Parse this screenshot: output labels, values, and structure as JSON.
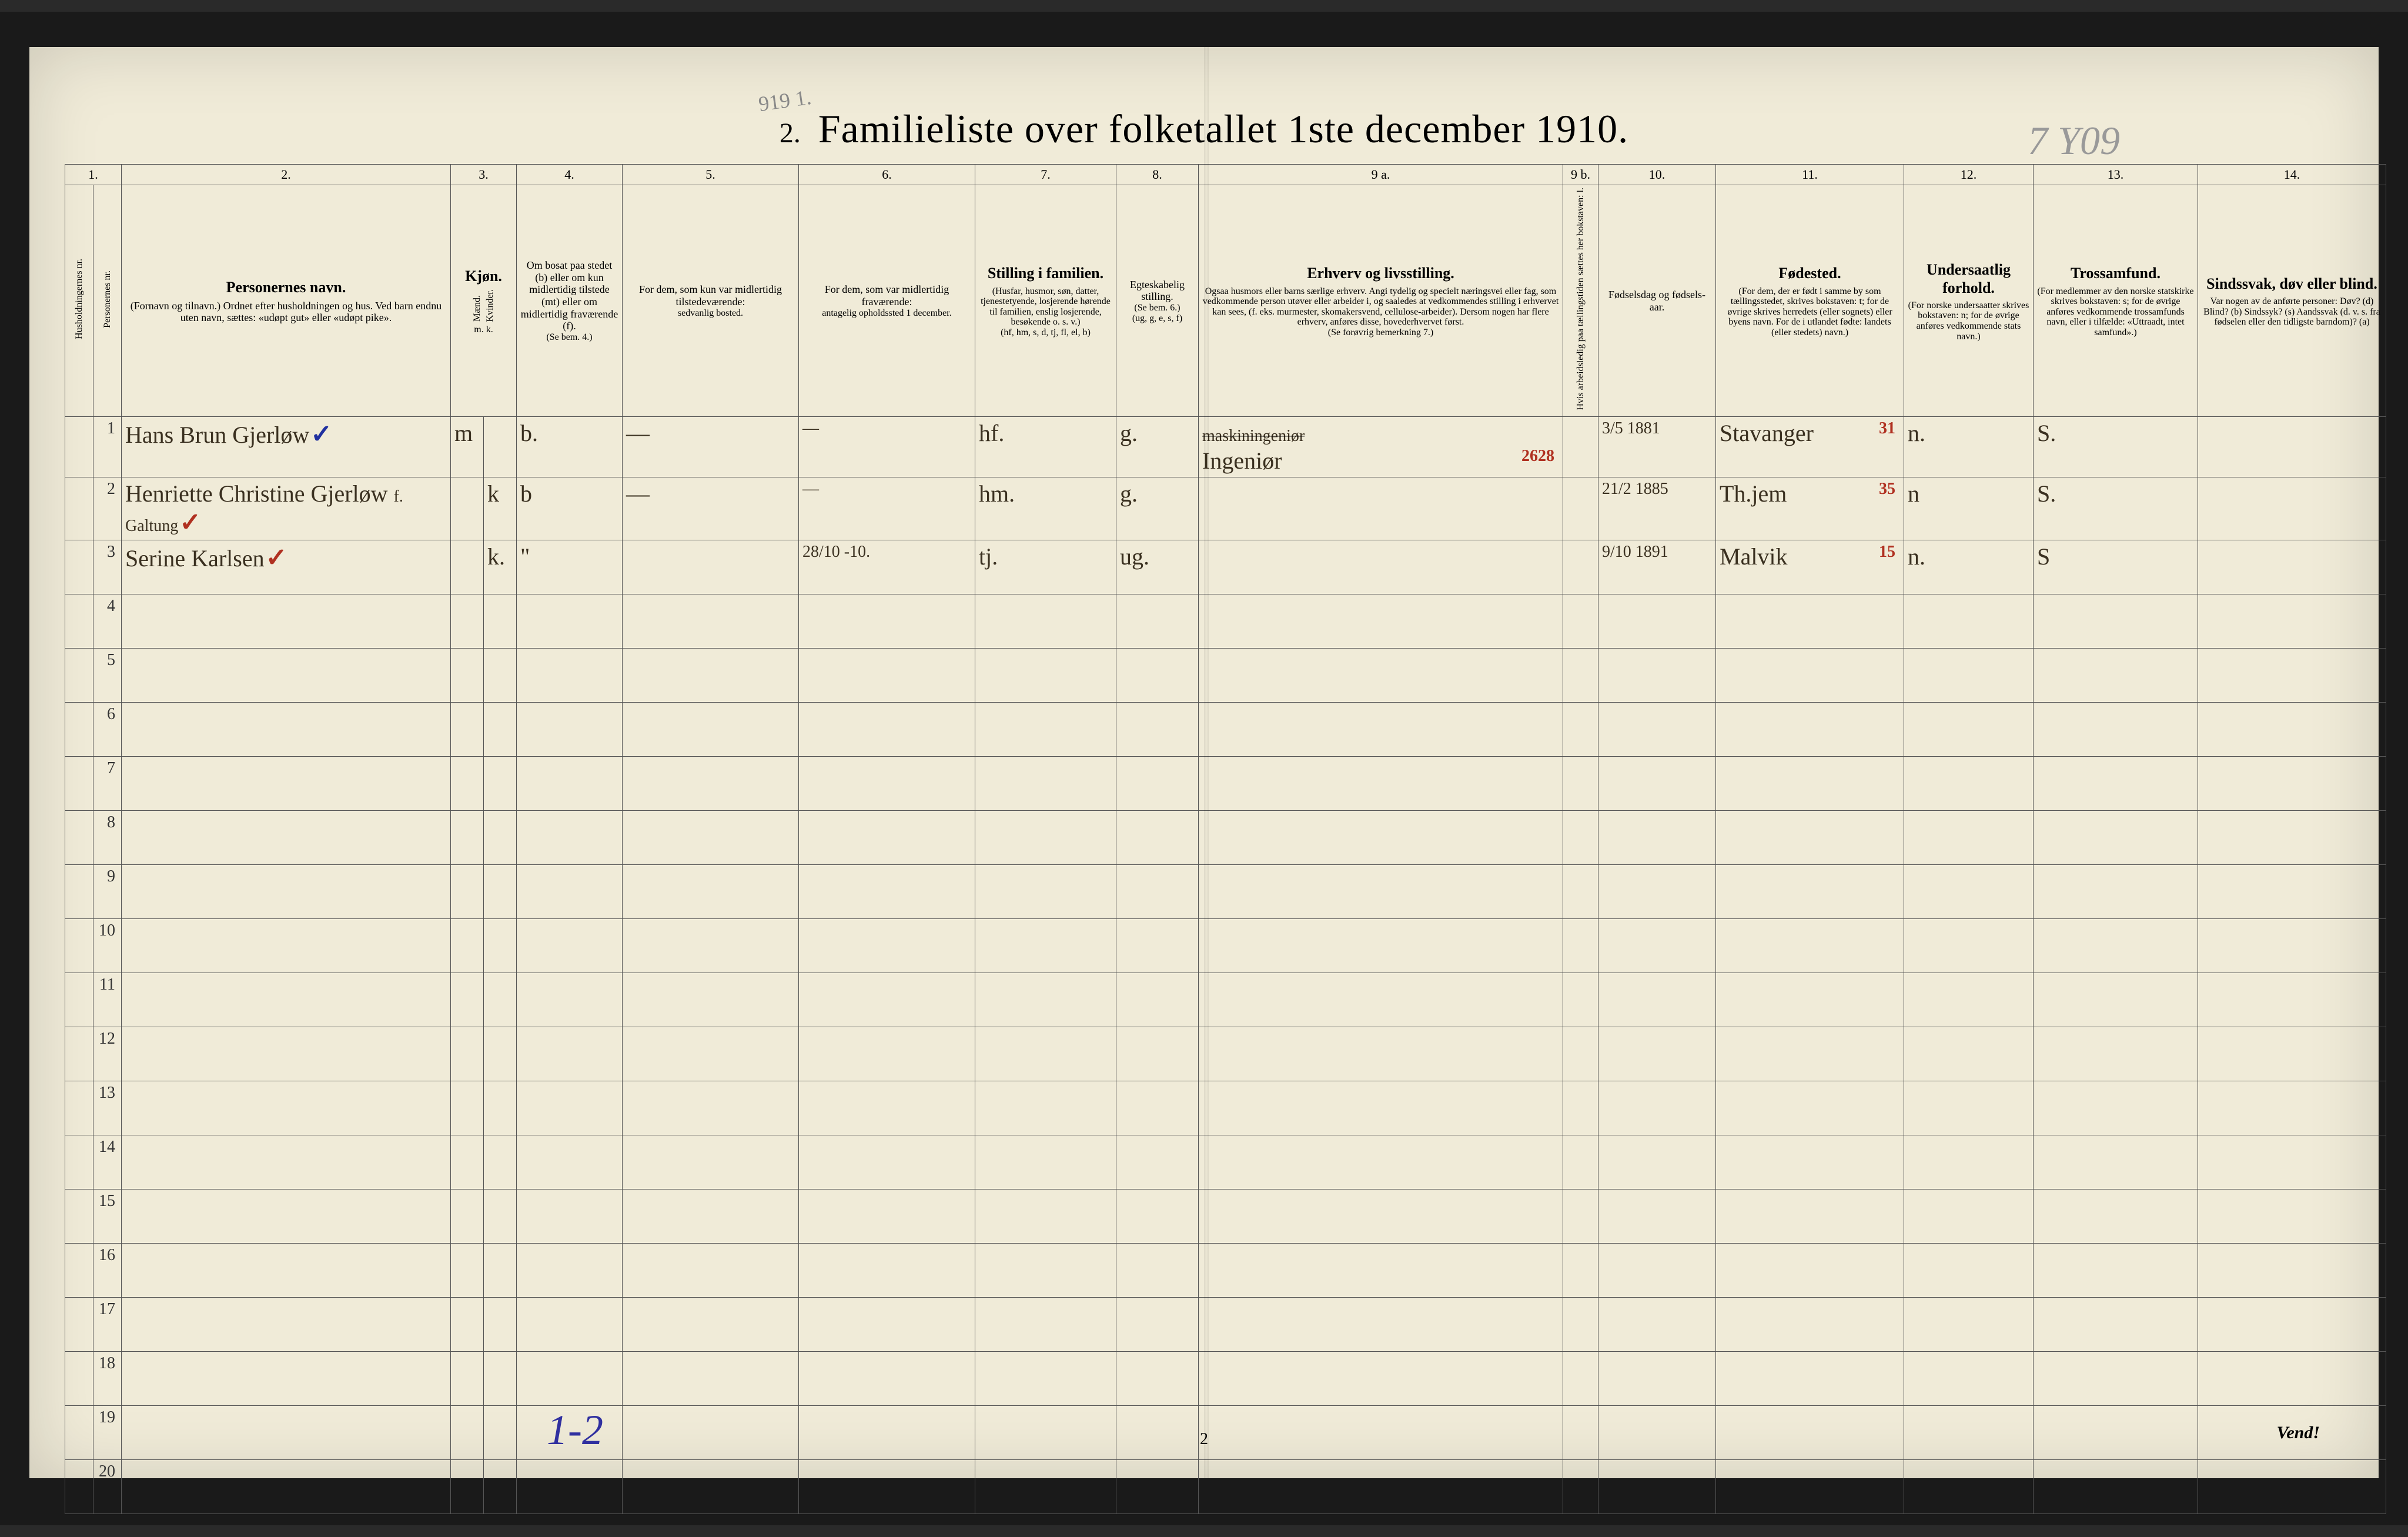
{
  "top_pencil": "919 1.",
  "header": {
    "number": "2.",
    "title": "Familieliste over folketallet 1ste december 1910.",
    "pencil_right": "7 Y09"
  },
  "column_numbers": [
    "1.",
    "",
    "2.",
    "3.",
    "",
    "4.",
    "5.",
    "6.",
    "7.",
    "8.",
    "9 a.",
    "9 b.",
    "10.",
    "11.",
    "12.",
    "13.",
    "14."
  ],
  "columns": {
    "c1_side": "Husholdningernes nr.",
    "c1b_side": "Personernes nr.",
    "c2_main": "Personernes navn.",
    "c2_sub": "(Fornavn og tilnavn.)\nOrdnet efter husholdningen og hus.\nVed barn endnu uten navn, sættes: «udøpt gut» eller «udøpt pike».",
    "c3_main": "Kjøn.",
    "c3_sub_m": "Mænd.",
    "c3_sub_k": "Kvinder.",
    "c3_foot": "m.    k.",
    "c4_main": "Om bosat paa stedet (b) eller om kun midlertidig tilstede (mt) eller om midlertidig fraværende (f).",
    "c4_foot": "(Se bem. 4.)",
    "c5_main": "For dem, som kun var midlertidig tilstedeværende:",
    "c5_sub": "sedvanlig bosted.",
    "c6_main": "For dem, som var midlertidig fraværende:",
    "c6_sub": "antagelig opholdssted 1 december.",
    "c7_main": "Stilling i familien.",
    "c7_sub": "(Husfar, husmor, søn, datter, tjenestetyende, losjerende hørende til familien, enslig losjerende, besøkende o. s. v.)",
    "c7_foot": "(hf, hm, s, d, tj, fl, el, b)",
    "c8_main": "Egteskabelig stilling.",
    "c8_sub": "(Se bem. 6.)",
    "c8_foot": "(ug, g, e, s, f)",
    "c9a_main": "Erhverv og livsstilling.",
    "c9a_sub": "Ogsaa husmors eller barns særlige erhverv. Angi tydelig og specielt næringsvei eller fag, som vedkommende person utøver eller arbeider i, og saaledes at vedkommendes stilling i erhvervet kan sees, (f. eks. murmester, skomakersvend, cellulose-arbeider). Dersom nogen har flere erhverv, anføres disse, hovederhvervet først.",
    "c9a_foot": "(Se forøvrig bemerkning 7.)",
    "c9b_side": "Hvis arbeidsledig paa tællingstiden sættes her bokstaven: l.",
    "c10_main": "Fødselsdag og fødsels-aar.",
    "c11_main": "Fødested.",
    "c11_sub": "(For dem, der er født i samme by som tællingsstedet, skrives bokstaven: t; for de øvrige skrives herredets (eller sognets) eller byens navn. For de i utlandet fødte: landets (eller stedets) navn.)",
    "c12_main": "Undersaatlig forhold.",
    "c12_sub": "(For norske undersaatter skrives bokstaven: n; for de øvrige anføres vedkommende stats navn.)",
    "c13_main": "Trossamfund.",
    "c13_sub": "(For medlemmer av den norske statskirke skrives bokstaven: s; for de øvrige anføres vedkommende trossamfunds navn, eller i tilfælde: «Uttraadt, intet samfund».)",
    "c14_main": "Sindssvak, døv eller blind.",
    "c14_sub": "Var nogen av de anførte personer:\nDøv?        (d)\nBlind?       (b)\nSindssyk? (s)\nAandssvak (d. v. s. fra fødselen eller den tidligste barndom)? (a)"
  },
  "rows": [
    {
      "num": "1",
      "name": "Hans Brun Gjerløw",
      "mark": "✓",
      "sex": "m",
      "resid": "b.",
      "c5": "—",
      "c6": "—",
      "family": "hf.",
      "marital": "g.",
      "occupation_strike": "maskiningeniør",
      "occupation": "Ingeniør",
      "cnum": "2628",
      "birth": "3/5 1881",
      "birthplace": "Stavanger",
      "bpnum": "31",
      "nat": "n.",
      "faith": "S.",
      "c14": ""
    },
    {
      "num": "2",
      "name": "Henriette Christine Gjerløw",
      "name_sub": "f. Galtung",
      "mark": "✓",
      "sex": "k",
      "resid": "b",
      "c5": "—",
      "c6": "—",
      "family": "hm.",
      "marital": "g.",
      "occupation": "",
      "cnum": "",
      "birth": "21/2 1885",
      "birthplace": "Th.jem",
      "bpnum": "35",
      "nat": "n",
      "faith": "S.",
      "c14": ""
    },
    {
      "num": "3",
      "name": "Serine Karlsen",
      "mark": "✓",
      "sex": "k.",
      "resid": "\"",
      "c5": "",
      "c6": "28/10 -10.",
      "family": "tj.",
      "marital": "ug.",
      "occupation": "",
      "cnum": "",
      "birth": "9/10 1891",
      "birthplace": "Malvik",
      "bpnum": "15",
      "nat": "n.",
      "faith": "S",
      "c14": ""
    }
  ],
  "empty_row_nums": [
    "4",
    "5",
    "6",
    "7",
    "8",
    "9",
    "10",
    "11",
    "12",
    "13",
    "14",
    "15",
    "16",
    "17",
    "18",
    "19",
    "20"
  ],
  "footer": {
    "page_num": "2",
    "pencil": "1-2",
    "vend": "Vend!"
  },
  "col_widths": [
    "48",
    "48",
    "560",
    "56",
    "56",
    "180",
    "300",
    "300",
    "240",
    "140",
    "620",
    "60",
    "200",
    "320",
    "220",
    "280",
    "320"
  ],
  "colors": {
    "paper": "#f0ebd8",
    "ink": "#333333",
    "handwriting": "#3a3020",
    "pencil": "#888888",
    "red": "#b03020",
    "blue": "#3030a0",
    "border": "#555555"
  }
}
